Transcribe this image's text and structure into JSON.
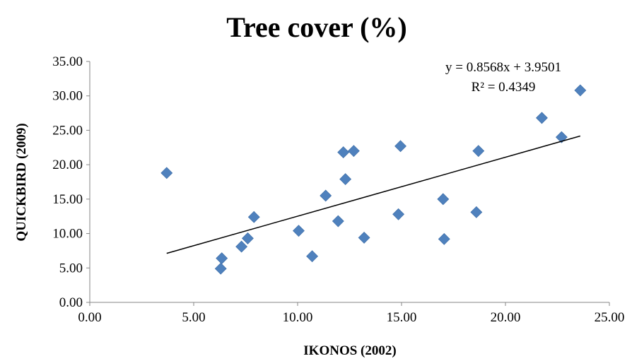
{
  "chart_data": {
    "type": "scatter",
    "title": "Tree cover (%)",
    "xlabel": "IKONOS (2002)",
    "ylabel": "QUICKBIRD (2009)",
    "xlim": [
      0,
      25
    ],
    "ylim": [
      0,
      35
    ],
    "x_ticks": [
      "0.00",
      "5.00",
      "10.00",
      "15.00",
      "20.00",
      "25.00"
    ],
    "y_ticks": [
      "0.00",
      "5.00",
      "10.00",
      "15.00",
      "20.00",
      "25.00",
      "30.00",
      "35.00"
    ],
    "grid": false,
    "marker_color": "#4f81bd",
    "marker": "diamond",
    "trendline": {
      "slope": 0.8568,
      "intercept": 3.9501,
      "equation": "y = 0.8568x + 3.9501",
      "r2_label": "R² = 0.4349",
      "color": "#000000"
    },
    "points": [
      {
        "x": 3.7,
        "y": 18.8
      },
      {
        "x": 6.3,
        "y": 4.9
      },
      {
        "x": 6.35,
        "y": 6.4
      },
      {
        "x": 7.3,
        "y": 8.1
      },
      {
        "x": 7.6,
        "y": 9.3
      },
      {
        "x": 7.9,
        "y": 12.4
      },
      {
        "x": 10.05,
        "y": 10.4
      },
      {
        "x": 10.7,
        "y": 6.7
      },
      {
        "x": 11.35,
        "y": 15.5
      },
      {
        "x": 11.95,
        "y": 11.8
      },
      {
        "x": 12.2,
        "y": 21.8
      },
      {
        "x": 12.3,
        "y": 17.9
      },
      {
        "x": 12.7,
        "y": 22.0
      },
      {
        "x": 13.2,
        "y": 9.4
      },
      {
        "x": 14.85,
        "y": 12.8
      },
      {
        "x": 14.95,
        "y": 22.7
      },
      {
        "x": 17.0,
        "y": 15.0
      },
      {
        "x": 17.05,
        "y": 9.2
      },
      {
        "x": 18.6,
        "y": 13.1
      },
      {
        "x": 18.7,
        "y": 22.0
      },
      {
        "x": 21.75,
        "y": 26.8
      },
      {
        "x": 22.7,
        "y": 24.0
      },
      {
        "x": 23.6,
        "y": 30.8
      }
    ]
  }
}
